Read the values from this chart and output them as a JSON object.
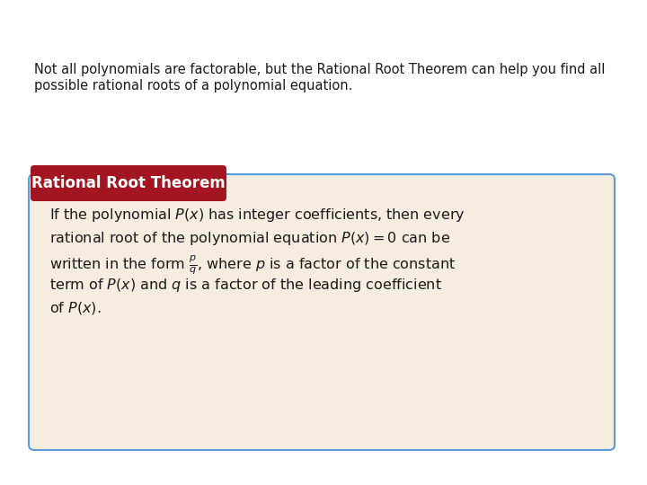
{
  "background_color": "#ffffff",
  "intro_text_line1": "Not all polynomials are factorable, but the Rational Root Theorem can help you find all",
  "intro_text_line2": "possible rational roots of a polynomial equation.",
  "intro_fontsize": 10.5,
  "box_bg_color": "#f5ede0",
  "box_border_color": "#5b9bd5",
  "header_bg_color": "#a31621",
  "header_text": "Rational Root Theorem",
  "header_fontsize": 12,
  "theorem_text_lines": [
    "If the polynomial $P(x)$ has integer coefficients, then every",
    "rational root of the polynomial equation $P(x) = 0$ can be",
    "written in the form $\\frac{p}{q}$, where $p$ is a factor of the constant",
    "term of $P(x)$ and $q$ is a factor of the leading coefficient",
    "of $P(x)$."
  ],
  "theorem_fontsize": 11.5
}
